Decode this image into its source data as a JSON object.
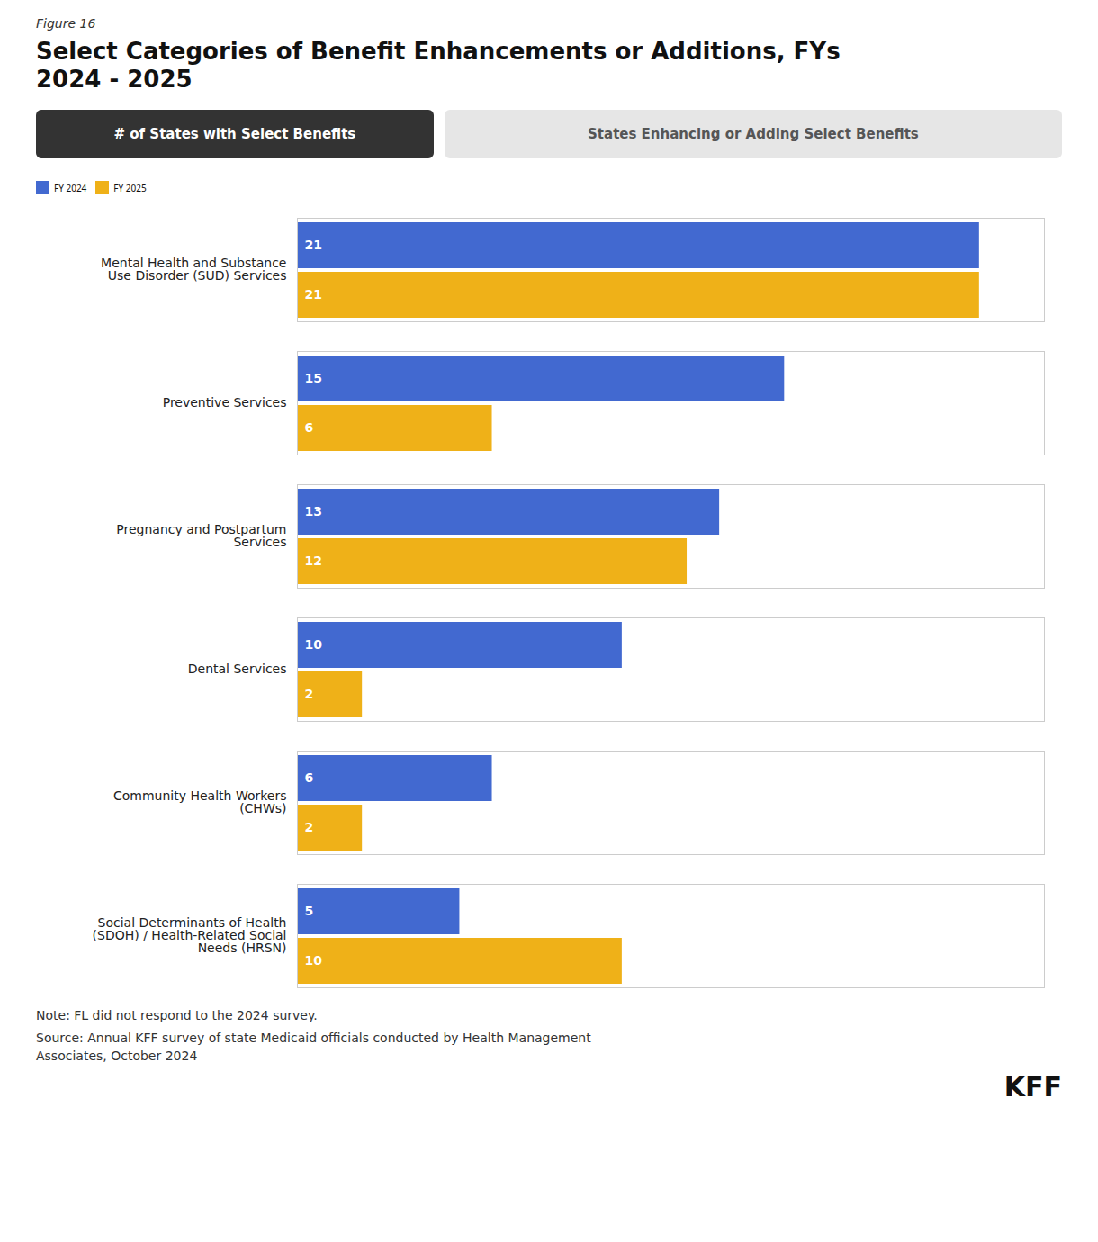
{
  "chart_data": {
    "type": "bar",
    "orientation": "horizontal",
    "figure_label": "Figure 16",
    "title": "Select Categories of Benefit Enhancements or Additions, FYs\n2024 - 2025",
    "tabs": [
      "# of States with Select Benefits",
      "States Enhancing or Adding Select Benefits"
    ],
    "categories": [
      "Mental Health and Substance\nUse Disorder (SUD) Services",
      "Preventive Services",
      "Pregnancy and Postpartum\nServices",
      "Dental Services",
      "Community Health Workers\n(CHWs)",
      "Social Determinants of Health\n(SDOH) / Health-Related Social\nNeeds (HRSN)"
    ],
    "series": [
      {
        "name": "FY 2024",
        "values": [
          21,
          15,
          13,
          10,
          6,
          5
        ]
      },
      {
        "name": "FY 2025",
        "values": [
          21,
          6,
          12,
          2,
          2,
          10
        ]
      }
    ],
    "xlim": [
      0,
      23
    ],
    "data_labels": true,
    "tick_labels": "y",
    "grid": false,
    "legend": "upper left",
    "note": "Note: FL did not respond to the 2024 survey.",
    "source": "Source: Annual KFF survey of state Medicaid officials conducted by Health Management\nAssociates, October 2024",
    "credit": "KFF"
  }
}
